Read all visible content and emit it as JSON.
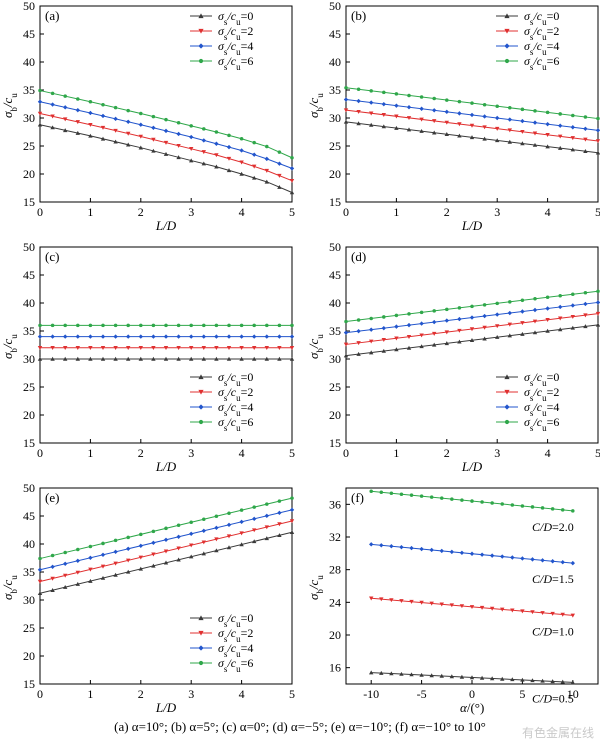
{
  "caption": "(a) α=10°; (b) α=5°; (c) α=0°; (d) α=−5°; (e) α=−10°; (f) α=−10° to 10°",
  "watermark": "有色金属在线",
  "colors": {
    "s0": "#3a3a3a",
    "s2": "#e03030",
    "s4": "#2255cc",
    "s6": "#2fa74a"
  },
  "legend_entries": [
    "σs/cu=0",
    "σs/cu=2",
    "σs/cu=4",
    "σs/cu=6"
  ],
  "chart_data": [
    {
      "panel": "(a)",
      "type": "line",
      "xlabel": "L/D",
      "ylabel": "σb/cu",
      "xlim": [
        0,
        5
      ],
      "ylim": [
        15,
        50
      ],
      "xticks": [
        0,
        1,
        2,
        3,
        4,
        5
      ],
      "yticks": [
        15,
        20,
        25,
        30,
        35,
        40,
        45,
        50
      ],
      "legend": "top-right",
      "series": [
        {
          "name": "σs/cu=0",
          "marker": "triangle-up",
          "color": "#3a3a3a",
          "x": [
            0,
            1,
            2,
            3,
            3.5,
            4,
            4.5,
            5
          ],
          "y": [
            28.8,
            26.8,
            24.7,
            22.4,
            21.3,
            20.0,
            18.6,
            16.7
          ]
        },
        {
          "name": "σs/cu=2",
          "marker": "triangle-down",
          "color": "#e03030",
          "x": [
            0,
            1,
            2,
            3,
            3.5,
            4,
            4.5,
            5
          ],
          "y": [
            30.8,
            28.8,
            26.7,
            24.5,
            23.4,
            22.1,
            20.6,
            18.8
          ]
        },
        {
          "name": "σs/cu=4",
          "marker": "diamond",
          "color": "#2255cc",
          "x": [
            0,
            1,
            2,
            3,
            3.5,
            4,
            4.5,
            5
          ],
          "y": [
            32.9,
            30.9,
            28.8,
            26.6,
            25.4,
            24.2,
            22.7,
            21.0
          ]
        },
        {
          "name": "σs/cu=6",
          "marker": "circle",
          "color": "#2fa74a",
          "x": [
            0,
            1,
            2,
            3,
            3.5,
            4,
            4.5,
            5
          ],
          "y": [
            34.9,
            32.9,
            30.8,
            28.6,
            27.5,
            26.3,
            24.9,
            22.9
          ]
        }
      ]
    },
    {
      "panel": "(b)",
      "type": "line",
      "xlabel": "L/D",
      "ylabel": "σb/cu",
      "xlim": [
        0,
        5
      ],
      "ylim": [
        15,
        50
      ],
      "xticks": [
        0,
        1,
        2,
        3,
        4,
        5
      ],
      "yticks": [
        15,
        20,
        25,
        30,
        35,
        40,
        45,
        50
      ],
      "legend": "top-right",
      "series": [
        {
          "name": "σs/cu=0",
          "marker": "triangle-up",
          "color": "#3a3a3a",
          "x": [
            0,
            5
          ],
          "y": [
            29.3,
            23.8
          ]
        },
        {
          "name": "σs/cu=2",
          "marker": "triangle-down",
          "color": "#e03030",
          "x": [
            0,
            5
          ],
          "y": [
            31.4,
            25.9
          ]
        },
        {
          "name": "σs/cu=4",
          "marker": "diamond",
          "color": "#2255cc",
          "x": [
            0,
            5
          ],
          "y": [
            33.3,
            27.8
          ]
        },
        {
          "name": "σs/cu=6",
          "marker": "circle",
          "color": "#2fa74a",
          "x": [
            0,
            5
          ],
          "y": [
            35.4,
            29.9
          ]
        }
      ]
    },
    {
      "panel": "(c)",
      "type": "line",
      "xlabel": "L/D",
      "ylabel": "σb/cu",
      "xlim": [
        0,
        5
      ],
      "ylim": [
        15,
        50
      ],
      "xticks": [
        0,
        1,
        2,
        3,
        4,
        5
      ],
      "yticks": [
        15,
        20,
        25,
        30,
        35,
        40,
        45,
        50
      ],
      "legend": "bottom-right",
      "series": [
        {
          "name": "σs/cu=0",
          "marker": "triangle-up",
          "color": "#3a3a3a",
          "x": [
            0,
            5
          ],
          "y": [
            30,
            30
          ]
        },
        {
          "name": "σs/cu=2",
          "marker": "triangle-down",
          "color": "#e03030",
          "x": [
            0,
            5
          ],
          "y": [
            32,
            32
          ]
        },
        {
          "name": "σs/cu=4",
          "marker": "diamond",
          "color": "#2255cc",
          "x": [
            0,
            5
          ],
          "y": [
            34,
            34
          ]
        },
        {
          "name": "σs/cu=6",
          "marker": "circle",
          "color": "#2fa74a",
          "x": [
            0,
            5
          ],
          "y": [
            36,
            36
          ]
        }
      ]
    },
    {
      "panel": "(d)",
      "type": "line",
      "xlabel": "L/D",
      "ylabel": "σb/cu",
      "xlim": [
        0,
        5
      ],
      "ylim": [
        15,
        50
      ],
      "xticks": [
        0,
        1,
        2,
        3,
        4,
        5
      ],
      "yticks": [
        15,
        20,
        25,
        30,
        35,
        40,
        45,
        50
      ],
      "legend": "bottom-right",
      "series": [
        {
          "name": "σs/cu=0",
          "marker": "triangle-up",
          "color": "#3a3a3a",
          "x": [
            0,
            5
          ],
          "y": [
            30.6,
            36.1
          ]
        },
        {
          "name": "σs/cu=2",
          "marker": "triangle-down",
          "color": "#e03030",
          "x": [
            0,
            5
          ],
          "y": [
            32.6,
            38.1
          ]
        },
        {
          "name": "σs/cu=4",
          "marker": "diamond",
          "color": "#2255cc",
          "x": [
            0,
            5
          ],
          "y": [
            34.7,
            40.1
          ]
        },
        {
          "name": "σs/cu=6",
          "marker": "circle",
          "color": "#2fa74a",
          "x": [
            0,
            5
          ],
          "y": [
            36.7,
            42.1
          ]
        }
      ]
    },
    {
      "panel": "(e)",
      "type": "line",
      "xlabel": "L/D",
      "ylabel": "σb/cu",
      "xlim": [
        0,
        5
      ],
      "ylim": [
        15,
        50
      ],
      "xticks": [
        0,
        1,
        2,
        3,
        4,
        5
      ],
      "yticks": [
        15,
        20,
        25,
        30,
        35,
        40,
        45,
        50
      ],
      "legend": "bottom-right",
      "series": [
        {
          "name": "σs/cu=0",
          "marker": "triangle-up",
          "color": "#3a3a3a",
          "x": [
            0,
            5
          ],
          "y": [
            31.2,
            42.1
          ]
        },
        {
          "name": "σs/cu=2",
          "marker": "triangle-down",
          "color": "#e03030",
          "x": [
            0,
            5
          ],
          "y": [
            33.3,
            44.1
          ]
        },
        {
          "name": "σs/cu=4",
          "marker": "diamond",
          "color": "#2255cc",
          "x": [
            0,
            5
          ],
          "y": [
            35.4,
            46.1
          ]
        },
        {
          "name": "σs/cu=6",
          "marker": "circle",
          "color": "#2fa74a",
          "x": [
            0,
            5
          ],
          "y": [
            37.4,
            48.2
          ]
        }
      ]
    },
    {
      "panel": "(f)",
      "type": "line",
      "xlabel": "α/(°)",
      "ylabel": "σb/cu",
      "xlim": [
        -12.5,
        12.5
      ],
      "ylim": [
        14,
        38
      ],
      "xticks": [
        -10,
        -5,
        0,
        5,
        10
      ],
      "yticks": [
        16,
        20,
        24,
        28,
        32,
        36
      ],
      "series": [
        {
          "name": "C/D=0.5",
          "marker": "triangle-up",
          "color": "#3a3a3a",
          "x": [
            -10,
            10
          ],
          "y": [
            15.4,
            14.2
          ]
        },
        {
          "name": "C/D=1.0",
          "marker": "triangle-down",
          "color": "#e03030",
          "x": [
            -10,
            10
          ],
          "y": [
            24.5,
            22.4
          ]
        },
        {
          "name": "C/D=1.5",
          "marker": "diamond",
          "color": "#2255cc",
          "x": [
            -10,
            10
          ],
          "y": [
            31.1,
            28.8
          ]
        },
        {
          "name": "C/D=2.0",
          "marker": "circle",
          "color": "#2fa74a",
          "x": [
            -10,
            10
          ],
          "y": [
            37.6,
            35.2
          ]
        }
      ]
    }
  ]
}
